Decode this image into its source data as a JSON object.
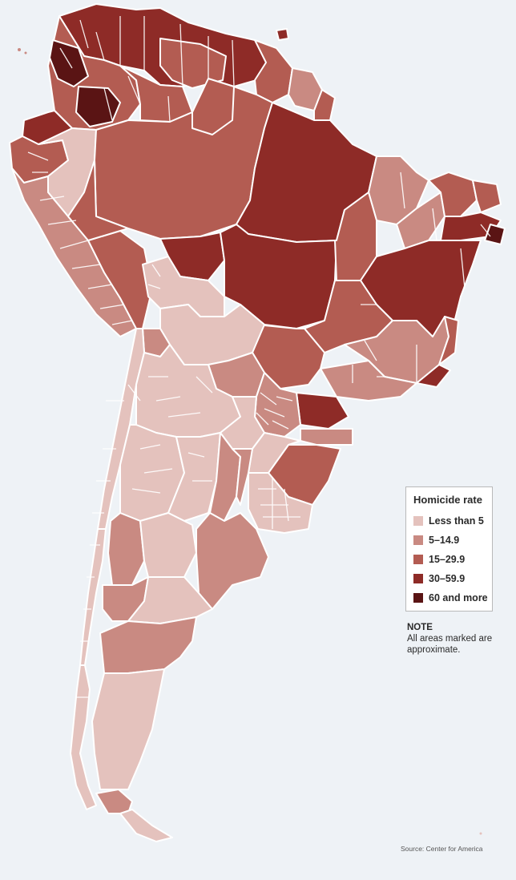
{
  "map": {
    "background_color": "#eef2f6",
    "border_color": "#ffffff",
    "classes": [
      {
        "key": "c1",
        "label": "Less than 5",
        "color": "#e4c2bd"
      },
      {
        "key": "c2",
        "label": "5–14.9",
        "color": "#c98a82"
      },
      {
        "key": "c3",
        "label": "15–29.9",
        "color": "#b35c52"
      },
      {
        "key": "c4",
        "label": "30–59.9",
        "color": "#8e2b27"
      },
      {
        "key": "c5",
        "label": "60 and more",
        "color": "#5a1414"
      }
    ]
  },
  "legend": {
    "title": "Homicide rate"
  },
  "note": {
    "title": "NOTE",
    "text": "All areas marked are approximate."
  },
  "source": "Source: Center for America"
}
